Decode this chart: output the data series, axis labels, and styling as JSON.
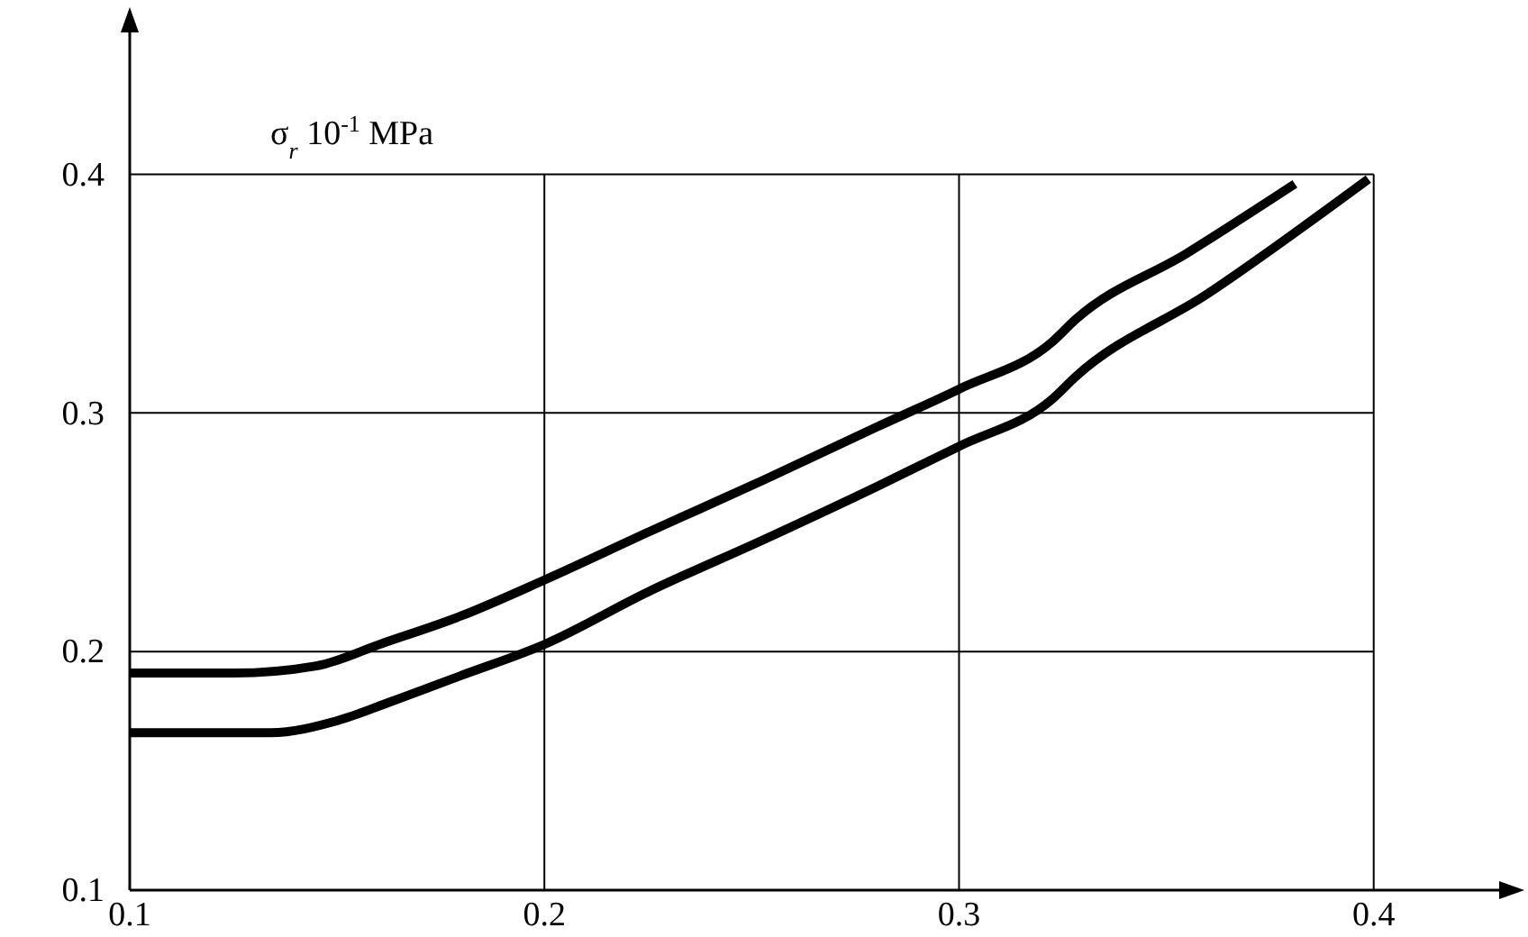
{
  "chart_data": {
    "type": "line",
    "ylabel": "σ$_{r}$ 10$^{-1}$ MPa",
    "xlim": [
      0.1,
      0.432
    ],
    "xticks": [
      0.1,
      0.2,
      0.3,
      0.4
    ],
    "ylim": [
      0.1,
      0.461
    ],
    "yticks": [
      0.1,
      0.2,
      0.3,
      0.4
    ],
    "grid": true,
    "marker": "none",
    "line_style": "solid",
    "series": [
      {
        "color": "#000000",
        "x": [
          0.1,
          0.125,
          0.145,
          0.161,
          0.18,
          0.2,
          0.225,
          0.253,
          0.28,
          0.3,
          0.3226,
          0.328,
          0.355,
          0.381
        ],
        "values": [
          0.191,
          0.191,
          0.194,
          0.2035,
          0.215,
          0.23,
          0.25,
          0.272,
          0.294,
          0.31,
          0.33,
          0.339,
          0.367,
          0.396
        ]
      },
      {
        "color": "#000000",
        "x": [
          0.1,
          0.134,
          0.15,
          0.163,
          0.18,
          0.2,
          0.225,
          0.253,
          0.28,
          0.3,
          0.3226,
          0.328,
          0.36,
          0.3987
        ],
        "values": [
          0.166,
          0.166,
          0.171,
          0.179,
          0.19,
          0.203,
          0.225,
          0.247,
          0.269,
          0.286,
          0.306,
          0.315,
          0.35,
          0.398
        ]
      }
    ]
  }
}
